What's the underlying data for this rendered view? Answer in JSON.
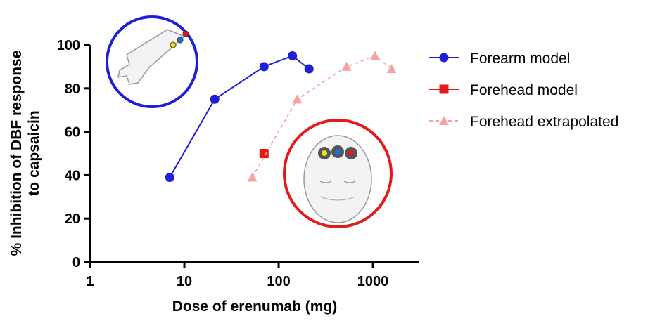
{
  "chart_data": {
    "type": "line",
    "x_label": "Dose of erenumab (mg)",
    "y_label": [
      "% Inhibition of DBF response",
      "to capsaicin"
    ],
    "log_x": true,
    "xlim": [
      1,
      3000
    ],
    "xticks": [
      1,
      10,
      100,
      1000
    ],
    "ylim": [
      0,
      100
    ],
    "yticks": [
      0,
      20,
      40,
      60,
      80,
      100
    ],
    "legend": "right",
    "series": [
      {
        "name": "Forearm model",
        "color": "#1f1fd6",
        "marker": "circle",
        "dashed": false,
        "x": [
          7,
          21,
          70,
          140,
          210
        ],
        "values": [
          39,
          75,
          90,
          95,
          89
        ]
      },
      {
        "name": "Forehead model",
        "color": "#e61919",
        "marker": "square",
        "dashed": false,
        "x": [
          70
        ],
        "values": [
          50
        ]
      },
      {
        "name": "Forehead extrapolated",
        "color": "#f4a3a3",
        "marker": "triangle",
        "dashed": true,
        "x": [
          52.5,
          157.5,
          525,
          1050,
          1575
        ],
        "values": [
          39,
          75,
          90,
          95,
          89
        ]
      }
    ]
  }
}
